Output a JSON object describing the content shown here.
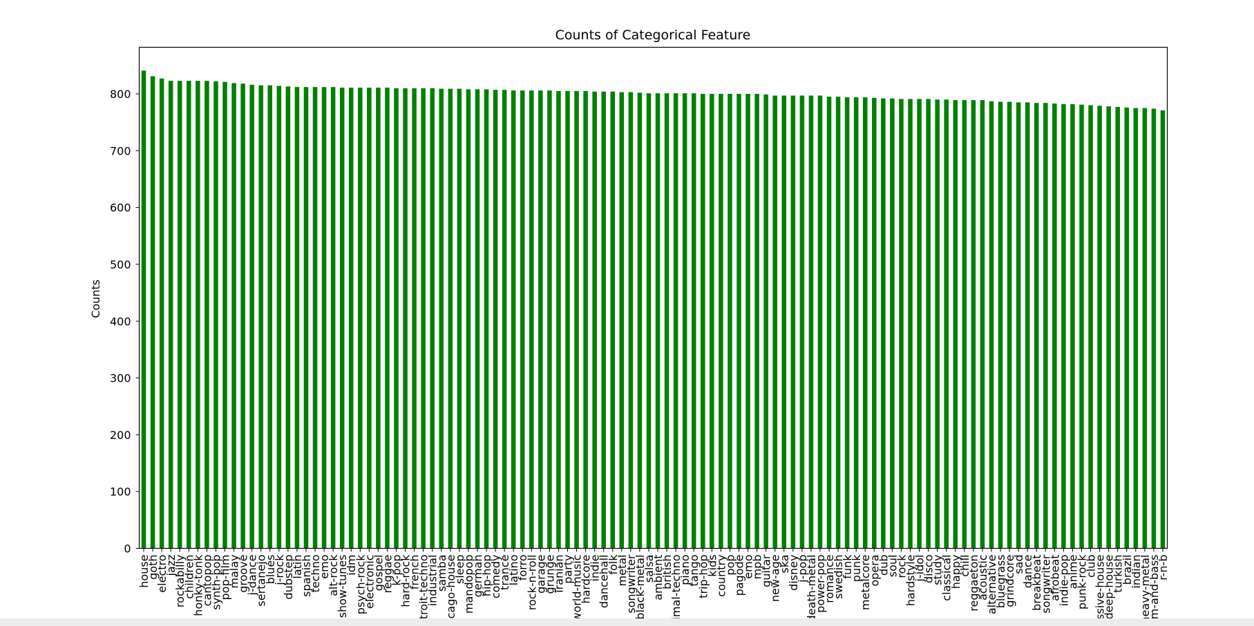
{
  "chart_data": {
    "type": "bar",
    "title": "Counts of Categorical Feature",
    "xlabel": "",
    "ylabel": "Counts",
    "ylim": [
      0,
      882
    ],
    "yticks": [
      0,
      100,
      200,
      300,
      400,
      500,
      600,
      700,
      800
    ],
    "grid": false,
    "legend": "none",
    "bar_color": "#008000",
    "categories": [
      "house",
      "goth",
      "electro",
      "jazz",
      "rockabilly",
      "children",
      "honky-tonk",
      "cantopop",
      "synth-pop",
      "pop-film",
      "malay",
      "groove",
      "j-dance",
      "sertanejo",
      "blues",
      "j-rock",
      "dubstep",
      "latin",
      "spanish",
      "techno",
      "emo",
      "alt-rock",
      "show-tunes",
      "idm",
      "psych-rock",
      "electronic",
      "gospel",
      "reggae",
      "k-pop",
      "hard-rock",
      "french",
      "detroit-techno",
      "industrial",
      "samba",
      "chicago-house",
      "sleep",
      "mandopop",
      "german",
      "hip-hop",
      "comedy",
      "trance",
      "latino",
      "forro",
      "rock-n-roll",
      "garage",
      "grunge",
      "iranian",
      "party",
      "world-music",
      "hardcore",
      "indie",
      "dancehall",
      "folk",
      "metal",
      "songwriter",
      "black-metal",
      "salsa",
      "ambient",
      "british",
      "minimal-techno",
      "piano",
      "tango",
      "trip-hop",
      "kids",
      "country",
      "pop",
      "pagode",
      "emo",
      "mpb",
      "guitar",
      "new-age",
      "ska",
      "disney",
      "j-pop",
      "death-metal",
      "power-pop",
      "romance",
      "swedish",
      "funk",
      "punk",
      "metalcore",
      "opera",
      "dub",
      "soul",
      "rock",
      "hardstyle",
      "j-idol",
      "disco",
      "study",
      "classical",
      "happy",
      "chill",
      "reggaeton",
      "acoustic",
      "alternative",
      "bluegrass",
      "grindcore",
      "sad",
      "dance",
      "breakbeat",
      "songwriter",
      "afrobeat",
      "indie-pop",
      "anime",
      "punk-rock",
      "club",
      "progressive-house",
      "deep-house",
      "turkish",
      "brazil",
      "indian",
      "heavy-metal",
      "drum-and-bass",
      "r-n-b"
    ],
    "values": [
      841,
      831,
      827,
      823,
      823,
      823,
      823,
      823,
      822,
      821,
      819,
      818,
      816,
      815,
      815,
      814,
      813,
      812,
      812,
      812,
      812,
      812,
      811,
      811,
      811,
      811,
      811,
      811,
      810,
      810,
      810,
      810,
      810,
      809,
      809,
      809,
      808,
      808,
      808,
      807,
      807,
      806,
      806,
      806,
      806,
      806,
      805,
      805,
      805,
      805,
      804,
      804,
      804,
      803,
      803,
      802,
      801,
      801,
      801,
      801,
      801,
      801,
      800,
      800,
      800,
      800,
      800,
      800,
      800,
      799,
      797,
      797,
      797,
      797,
      797,
      797,
      795,
      795,
      794,
      794,
      794,
      793,
      792,
      792,
      791,
      791,
      791,
      791,
      790,
      790,
      789,
      789,
      789,
      789,
      787,
      786,
      786,
      785,
      785,
      784,
      784,
      783,
      782,
      782,
      781,
      780,
      779,
      778,
      777,
      776,
      775,
      775,
      774,
      771
    ]
  }
}
